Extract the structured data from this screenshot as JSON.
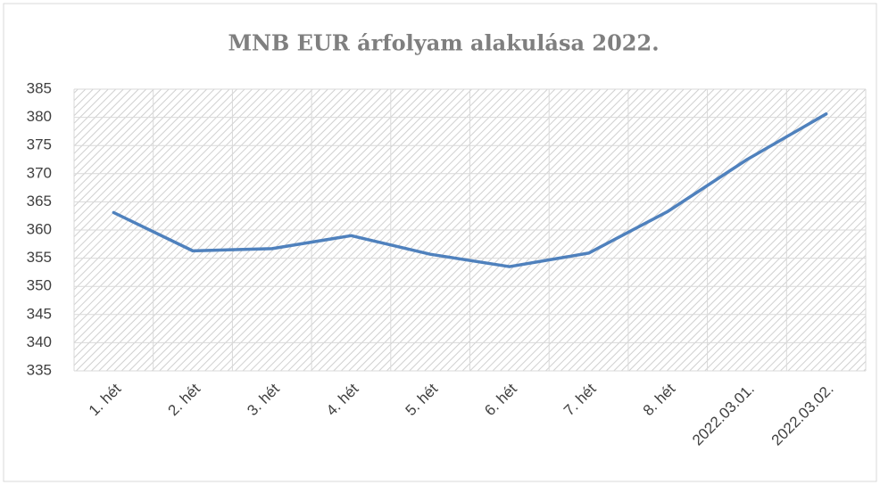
{
  "chart_data": {
    "type": "line",
    "title": "MNB EUR árfolyam alakulása 2022.",
    "categories": [
      "1. hét",
      "2. hét",
      "3. hét",
      "4. hét",
      "5. hét",
      "6. hét",
      "7. hét",
      "8. hét",
      "2022.03.01.",
      "2022.03.02."
    ],
    "series": [
      {
        "name": "EUR",
        "color": "#4f81bd",
        "values": [
          363.1,
          356.3,
          356.7,
          359.0,
          355.7,
          353.5,
          355.9,
          363.3,
          372.5,
          380.6
        ]
      }
    ],
    "ylim": [
      335,
      385
    ],
    "yticks": [
      335,
      340,
      345,
      350,
      355,
      360,
      365,
      370,
      375,
      380,
      385
    ],
    "grid": true
  }
}
